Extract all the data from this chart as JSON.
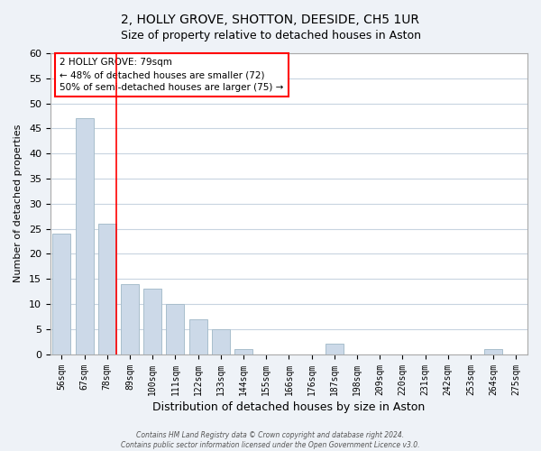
{
  "title": "2, HOLLY GROVE, SHOTTON, DEESIDE, CH5 1UR",
  "subtitle": "Size of property relative to detached houses in Aston",
  "xlabel": "Distribution of detached houses by size in Aston",
  "ylabel": "Number of detached properties",
  "bar_color": "#ccd9e8",
  "bar_edge_color": "#a8becc",
  "categories": [
    "56sqm",
    "67sqm",
    "78sqm",
    "89sqm",
    "100sqm",
    "111sqm",
    "122sqm",
    "133sqm",
    "144sqm",
    "155sqm",
    "166sqm",
    "176sqm",
    "187sqm",
    "198sqm",
    "209sqm",
    "220sqm",
    "231sqm",
    "242sqm",
    "253sqm",
    "264sqm",
    "275sqm"
  ],
  "values": [
    24,
    47,
    26,
    14,
    13,
    10,
    7,
    5,
    1,
    0,
    0,
    0,
    2,
    0,
    0,
    0,
    0,
    0,
    0,
    1,
    0
  ],
  "ylim": [
    0,
    60
  ],
  "yticks": [
    0,
    5,
    10,
    15,
    20,
    25,
    30,
    35,
    40,
    45,
    50,
    55,
    60
  ],
  "annotation_text_line1": "2 HOLLY GROVE: 79sqm",
  "annotation_text_line2": "← 48% of detached houses are smaller (72)",
  "annotation_text_line3": "50% of semi-detached houses are larger (75) →",
  "red_line_bar_index": 2,
  "footer_line1": "Contains HM Land Registry data © Crown copyright and database right 2024.",
  "footer_line2": "Contains public sector information licensed under the Open Government Licence v3.0.",
  "background_color": "#eef2f7",
  "plot_background_color": "#ffffff",
  "grid_color": "#c8d4e0",
  "title_fontsize": 10,
  "subtitle_fontsize": 9,
  "tick_fontsize": 7,
  "ylabel_fontsize": 8,
  "xlabel_fontsize": 9
}
